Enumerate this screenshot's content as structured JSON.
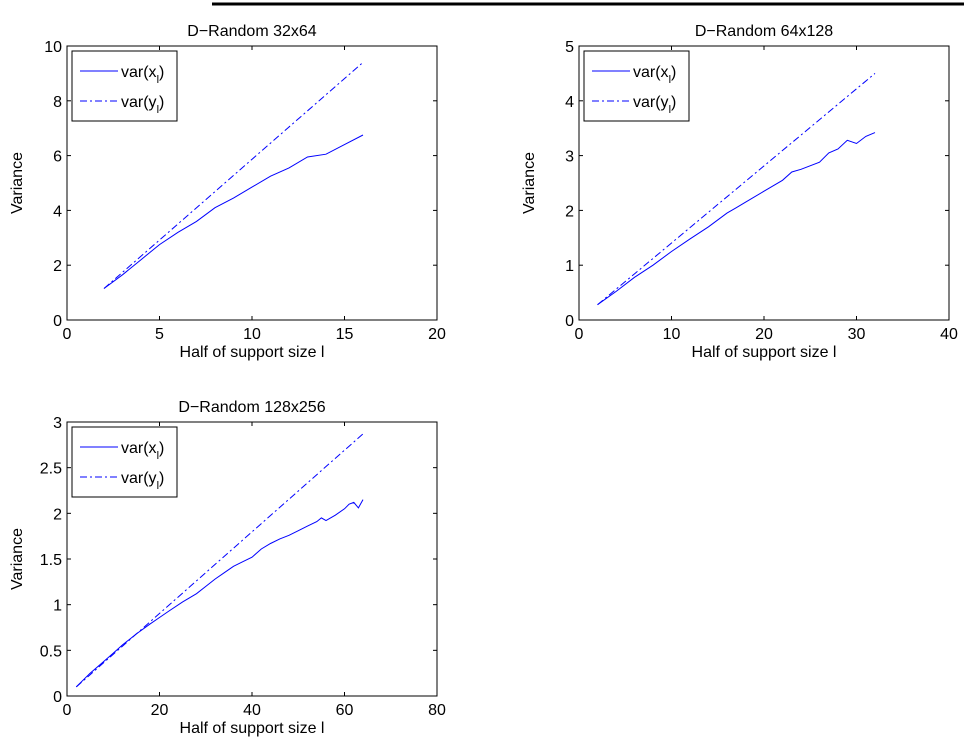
{
  "chart_data": [
    {
      "type": "line",
      "title": "D−Random 32x64",
      "xlabel": "Half of support size l",
      "ylabel": "Variance",
      "xlim": [
        0,
        20
      ],
      "ylim": [
        0,
        10
      ],
      "xticks": [
        0,
        5,
        10,
        15,
        20
      ],
      "yticks": [
        0,
        2,
        4,
        6,
        8,
        10
      ],
      "xticklabels": [
        "0",
        "5",
        "10",
        "15",
        "20"
      ],
      "yticklabels": [
        "0",
        "2",
        "4",
        "6",
        "8",
        "10"
      ],
      "legend_position": "top-left",
      "series": [
        {
          "name": "var(x_l)",
          "legend_base": "var(x",
          "legend_sub": "l",
          "legend_close": ")",
          "style": "solid",
          "color": "#0000ff",
          "x": [
            2,
            3,
            4,
            5,
            6,
            7,
            8,
            9,
            10,
            11,
            12,
            13,
            14,
            15,
            16
          ],
          "y": [
            1.15,
            1.65,
            2.2,
            2.75,
            3.2,
            3.6,
            4.1,
            4.45,
            4.85,
            5.25,
            5.55,
            5.95,
            6.05,
            6.4,
            6.75
          ]
        },
        {
          "name": "var(y_l)",
          "legend_base": "var(y",
          "legend_sub": "l",
          "legend_close": ")",
          "style": "dashdot",
          "color": "#0000ff",
          "x": [
            2,
            16
          ],
          "y": [
            1.15,
            9.4
          ]
        }
      ]
    },
    {
      "type": "line",
      "title": "D−Random 64x128",
      "xlabel": "Half of support size l",
      "ylabel": "Variance",
      "xlim": [
        0,
        40
      ],
      "ylim": [
        0,
        5
      ],
      "xticks": [
        0,
        10,
        20,
        30,
        40
      ],
      "yticks": [
        0,
        1,
        2,
        3,
        4,
        5
      ],
      "xticklabels": [
        "0",
        "10",
        "20",
        "30",
        "40"
      ],
      "yticklabels": [
        "0",
        "1",
        "2",
        "3",
        "4",
        "5"
      ],
      "legend_position": "top-left",
      "series": [
        {
          "name": "var(x_l)",
          "legend_base": "var(x",
          "legend_sub": "l",
          "legend_close": ")",
          "style": "solid",
          "color": "#0000ff",
          "x": [
            2,
            4,
            6,
            8,
            10,
            12,
            14,
            16,
            17,
            18,
            20,
            22,
            23,
            24,
            26,
            27,
            28,
            29,
            30,
            31,
            32
          ],
          "y": [
            0.28,
            0.52,
            0.78,
            1.0,
            1.25,
            1.48,
            1.7,
            1.95,
            2.05,
            2.15,
            2.35,
            2.55,
            2.7,
            2.75,
            2.88,
            3.05,
            3.12,
            3.28,
            3.22,
            3.35,
            3.42
          ]
        },
        {
          "name": "var(y_l)",
          "legend_base": "var(y",
          "legend_sub": "l",
          "legend_close": ")",
          "style": "dashdot",
          "color": "#0000ff",
          "x": [
            2,
            32
          ],
          "y": [
            0.28,
            4.5
          ]
        }
      ]
    },
    {
      "type": "line",
      "title": "D−Random 128x256",
      "xlabel": "Half of support size l",
      "ylabel": "Variance",
      "xlim": [
        0,
        80
      ],
      "ylim": [
        0,
        3
      ],
      "xticks": [
        0,
        20,
        40,
        60,
        80
      ],
      "yticks": [
        0,
        0.5,
        1,
        1.5,
        2,
        2.5,
        3
      ],
      "xticklabels": [
        "0",
        "20",
        "40",
        "60",
        "80"
      ],
      "yticklabels": [
        "0",
        "0.5",
        "1",
        "1.5",
        "2",
        "2.5",
        "3"
      ],
      "legend_position": "top-left",
      "series": [
        {
          "name": "var(x_l)",
          "legend_base": "var(x",
          "legend_sub": "l",
          "legend_close": ")",
          "style": "solid",
          "color": "#0000ff",
          "x": [
            2,
            5,
            8,
            10,
            12,
            15,
            18,
            20,
            22,
            25,
            28,
            30,
            32,
            34,
            36,
            38,
            40,
            42,
            44,
            46,
            48,
            50,
            52,
            54,
            55,
            56,
            58,
            60,
            61,
            62,
            63,
            64
          ],
          "y": [
            0.1,
            0.25,
            0.38,
            0.47,
            0.56,
            0.68,
            0.79,
            0.86,
            0.93,
            1.03,
            1.12,
            1.2,
            1.28,
            1.35,
            1.42,
            1.47,
            1.52,
            1.61,
            1.67,
            1.72,
            1.76,
            1.81,
            1.86,
            1.91,
            1.95,
            1.92,
            1.98,
            2.05,
            2.1,
            2.12,
            2.06,
            2.15
          ]
        },
        {
          "name": "var(y_l)",
          "legend_base": "var(y",
          "legend_sub": "l",
          "legend_close": ")",
          "style": "dashdot",
          "color": "#0000ff",
          "x": [
            2,
            64
          ],
          "y": [
            0.1,
            2.87
          ]
        }
      ]
    }
  ]
}
